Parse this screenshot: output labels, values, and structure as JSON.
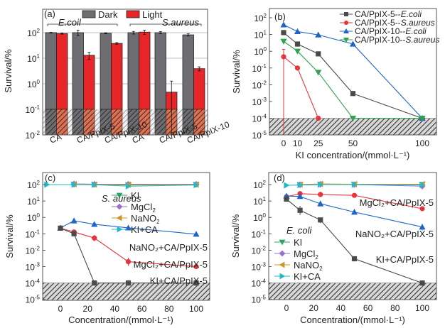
{
  "chart_data": [
    {
      "panel": "(a)",
      "type": "bar",
      "ylabel": "Survival/%",
      "yscale": "log",
      "ylim": [
        0.01,
        800
      ],
      "yticks": [
        "10^2",
        "10^1",
        "10^0",
        "10^-1",
        "10^-2"
      ],
      "detection_limit": 0.1,
      "legend": [
        {
          "name": "Dark",
          "color": "#6e6e72"
        },
        {
          "name": "Light",
          "color": "#e8262a"
        }
      ],
      "groups": [
        {
          "name": "E.coil",
          "categories": [
            "CA",
            "CA/PpIX-5",
            "CA/PpIX-10"
          ]
        },
        {
          "name": "S.aureus",
          "categories": [
            "CA",
            "CA/PpIX-5",
            "CA/PpIX-10"
          ]
        }
      ],
      "series": [
        {
          "name": "Dark",
          "values": [
            100,
            100,
            95,
            100,
            100,
            82
          ],
          "errors": [
            3,
            25,
            4,
            12,
            10,
            8
          ]
        },
        {
          "name": "Light",
          "values": [
            92,
            13,
            38,
            105,
            0.47,
            3.9
          ],
          "errors": [
            5,
            4,
            3,
            20,
            0.8,
            0.7
          ]
        }
      ]
    },
    {
      "panel": "(b)",
      "type": "line",
      "xlabel": "KI concentration/(mmol·L⁻¹)",
      "ylabel": "Survival/%",
      "yscale": "log",
      "ylim": [
        1e-05,
        300
      ],
      "x": [
        0,
        10,
        25,
        50,
        100
      ],
      "xticks": [
        "0",
        "10",
        "25",
        "50",
        "100"
      ],
      "yticks": [
        "10^2",
        "10^1",
        "10^0",
        "10^-1",
        "10^-2",
        "10^-3",
        "10^-4",
        "10^-5"
      ],
      "detection_limit": 0.0001,
      "legend_position": "top-right",
      "series": [
        {
          "name": "CA/PpIX-5--",
          "name_italic": "E.coli",
          "color": "#4a4a4a",
          "marker": "square",
          "values": [
            13,
            2.7,
            0.7,
            0.003,
            0.0001
          ]
        },
        {
          "name": "CA/PpIX-5--",
          "name_italic": "S.aureus",
          "color": "#e8333a",
          "marker": "circle",
          "x": [
            0,
            10,
            25
          ],
          "values": [
            0.47,
            0.1,
            0.0001
          ]
        },
        {
          "name": "CA/PpIX-10--",
          "name_italic": "E.coli",
          "color": "#1f64c8",
          "marker": "triangle-up",
          "values": [
            38,
            15,
            9.5,
            2.7,
            0.0001
          ]
        },
        {
          "name": "CA/PpIX-10--",
          "name_italic": "S.aureus",
          "color": "#2fa34e",
          "marker": "triangle-down",
          "values": [
            3.9,
            1.0,
            0.055,
            0.0001,
            0.0001
          ]
        }
      ]
    },
    {
      "panel": "(c)",
      "type": "line",
      "xlabel": "Concentration/(mmol·L⁻¹)",
      "ylabel": "Survival/%",
      "yscale": "log",
      "ylim": [
        1e-05,
        300
      ],
      "xlim": [
        -12,
        112
      ],
      "x": [
        0,
        10,
        25,
        50,
        100
      ],
      "xticks": [
        "0",
        "20",
        "40",
        "60",
        "80",
        "100"
      ],
      "yticks": [
        "10^2",
        "10^1",
        "10^0",
        "10^-1",
        "10^-2",
        "10^-3",
        "10^-4",
        "10^-5"
      ],
      "detection_limit": 0.0001,
      "annotation": "S. aureus",
      "series": [
        {
          "name": "KI",
          "color": "#2fa36a",
          "marker": "triangle-down",
          "x": [
            10,
            25,
            50,
            100
          ],
          "values": [
            100,
            100,
            95,
            100
          ]
        },
        {
          "name": "MgCl2",
          "color": "#9a6fd0",
          "marker": "diamond",
          "x": [
            10,
            25,
            50,
            100
          ],
          "values": [
            110,
            105,
            105,
            105
          ]
        },
        {
          "name": "NaNO2",
          "color": "#c8962a",
          "marker": "triangle-left",
          "x": [
            10,
            25,
            50,
            100
          ],
          "values": [
            105,
            100,
            100,
            100
          ]
        },
        {
          "name": "KI+CA",
          "color": "#22b8c8",
          "marker": "triangle-right",
          "x": [
            -10,
            10,
            25,
            50,
            100
          ],
          "values": [
            100,
            100,
            98,
            80,
            95
          ]
        },
        {
          "name": "NaNO2+CA/PpIX-5",
          "color": "#1f64c8",
          "marker": "triangle-up",
          "values": [
            0.23,
            0.62,
            0.38,
            0.23,
            0.095
          ]
        },
        {
          "name": "MgCl2+CA/PpIX-5",
          "color": "#e8333a",
          "marker": "circle",
          "values": [
            0.22,
            0.13,
            0.055,
            0.002,
            0.001
          ]
        },
        {
          "name": "KI+CA/PpIX-5",
          "color": "#4a4a4a",
          "marker": "square",
          "values": [
            0.22,
            0.1,
            0.0001,
            0.0001,
            0.0001
          ]
        }
      ],
      "labels": [
        "NaNO₂+CA/PpIX-5",
        "MgCl₂+CA/PpIX-5",
        "KI+CA/PpIX-5"
      ]
    },
    {
      "panel": "(d)",
      "type": "line",
      "xlabel": "Concentration/(mmol·L⁻¹)",
      "ylabel": "Survival/%",
      "yscale": "log",
      "ylim": [
        1e-05,
        300
      ],
      "xlim": [
        -12,
        112
      ],
      "x": [
        0,
        10,
        25,
        50,
        100
      ],
      "xticks": [
        "0",
        "20",
        "40",
        "60",
        "80",
        "100"
      ],
      "yticks": [
        "10^2",
        "10^1",
        "10^0",
        "10^-1",
        "10^-2",
        "10^-3",
        "10^-4",
        "10^-5"
      ],
      "detection_limit": 0.0001,
      "annotation": "E. coli",
      "series": [
        {
          "name": "KI",
          "color": "#2fa36a",
          "marker": "triangle-down",
          "x": [
            10,
            25,
            50,
            100
          ],
          "values": [
            95,
            100,
            100,
            100
          ]
        },
        {
          "name": "MgCl2",
          "color": "#9a6fd0",
          "marker": "diamond",
          "x": [
            10,
            25,
            50,
            100
          ],
          "values": [
            100,
            105,
            100,
            80
          ]
        },
        {
          "name": "NaNO2",
          "color": "#c8962a",
          "marker": "triangle-left",
          "x": [
            10,
            25,
            50,
            100
          ],
          "values": [
            100,
            110,
            105,
            105
          ]
        },
        {
          "name": "KI+CA",
          "color": "#22b8c8",
          "marker": "triangle-right",
          "x": [
            0,
            10,
            25,
            50,
            100
          ],
          "values": [
            90,
            95,
            100,
            100,
            95
          ]
        },
        {
          "name": "MgCl2+CA/PpIX-5",
          "color": "#e8333a",
          "marker": "circle",
          "values": [
            18,
            28,
            25,
            22,
            3.4
          ]
        },
        {
          "name": "NaNO2+CA/PpIX-5",
          "color": "#1f64c8",
          "marker": "triangle-up",
          "values": [
            20,
            19,
            6.8,
            2.1,
            0.26
          ]
        },
        {
          "name": "KI+CA/PpIX-5",
          "color": "#4a4a4a",
          "marker": "square",
          "values": [
            13,
            2.7,
            0.7,
            0.003,
            0.0001
          ]
        }
      ],
      "labels": [
        "MgCl₂+CA/PpIX-5",
        "NaNO₂+CA/PpIX-5",
        "KI+CA/PpIX-5"
      ]
    }
  ],
  "text": {
    "a_panel": "(a)",
    "a_group1": "E.coil",
    "a_group2": "S.aureus",
    "a_leg_dark": "Dark",
    "a_leg_light": "Light",
    "a_cats": [
      "CA",
      "CA/PpIX-5",
      "CA/PpIX-10",
      "CA",
      "CA/PpIX-5",
      "CA/PpIX-10"
    ],
    "ylabel": "Survival/%",
    "b_panel": "(b)",
    "b_xlabel": "KI concentration/(mmol·L⁻¹)",
    "c_panel": "(c)",
    "c_annot": "S. aureus",
    "d_panel": "(d)",
    "d_annot": "E. coli",
    "cd_xlabel": "Concentration/(mmol·L⁻¹)",
    "leg_KI": "KI",
    "leg_MgCl": "MgCl",
    "leg_NaNO": "NaNO",
    "leg_KICA": "KI+CA",
    "sub2": "2",
    "c_lbl1": "NaNO₂+CA/PpIX-5",
    "c_lbl2": "MgCl₂+CA/PpIX-5",
    "c_lbl3": "KI+CA/PpIX-5",
    "d_lbl1": "MgCl₂+CA/PpIX-5",
    "d_lbl2": "NaNO₂+CA/PpIX-5",
    "d_lbl3": "KI+CA/PpIX-5"
  }
}
